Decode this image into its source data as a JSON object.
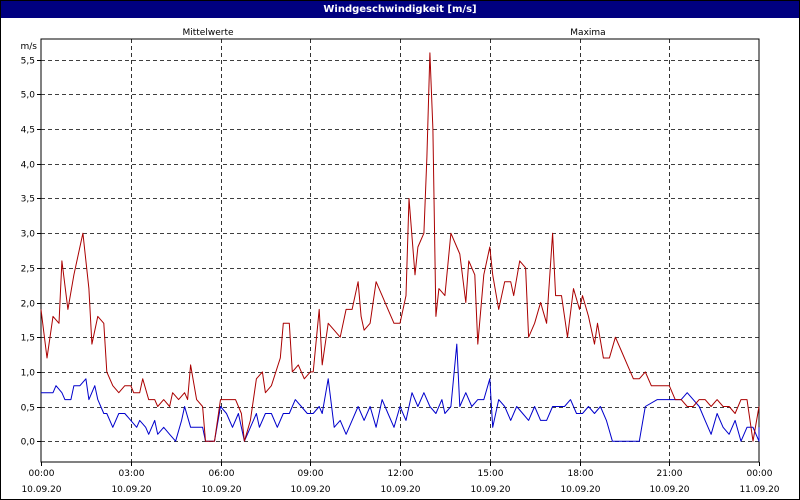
{
  "window": {
    "title": "Windgeschwindigkeit [m/s]"
  },
  "chart_data": {
    "type": "line",
    "ylabel": "m/s",
    "ylim": [
      -0.3,
      5.8
    ],
    "yticks": [
      {
        "value": 0.0,
        "label": "0,0"
      },
      {
        "value": 0.5,
        "label": "0,5"
      },
      {
        "value": 1.0,
        "label": "1,0"
      },
      {
        "value": 1.5,
        "label": "1,5"
      },
      {
        "value": 2.0,
        "label": "2,0"
      },
      {
        "value": 2.5,
        "label": "2,5"
      },
      {
        "value": 3.0,
        "label": "3,0"
      },
      {
        "value": 3.5,
        "label": "3,5"
      },
      {
        "value": 4.0,
        "label": "4,0"
      },
      {
        "value": 4.5,
        "label": "4,5"
      },
      {
        "value": 5.0,
        "label": "5,0"
      },
      {
        "value": 5.5,
        "label": "5,5"
      }
    ],
    "xlim": [
      0,
      24
    ],
    "xticks": [
      {
        "value": 0,
        "time": "00:00",
        "date": "10.09.20"
      },
      {
        "value": 3,
        "time": "03:00",
        "date": "10.09.20"
      },
      {
        "value": 6,
        "time": "06:00",
        "date": "10.09.20"
      },
      {
        "value": 9,
        "time": "09:00",
        "date": "10.09.20"
      },
      {
        "value": 12,
        "time": "12:00",
        "date": "10.09.20"
      },
      {
        "value": 15,
        "time": "15:00",
        "date": "10.09.20"
      },
      {
        "value": 18,
        "time": "18:00",
        "date": "10.09.20"
      },
      {
        "value": 21,
        "time": "21:00",
        "date": "10.09.20"
      },
      {
        "value": 24,
        "time": "00:00",
        "date": "11.09.20"
      }
    ],
    "grid": true,
    "series": [
      {
        "name": "Mittelwerte",
        "color": "#0000cc",
        "points": [
          [
            0.0,
            0.7
          ],
          [
            0.2,
            0.7
          ],
          [
            0.4,
            0.7
          ],
          [
            0.5,
            0.8
          ],
          [
            0.7,
            0.7
          ],
          [
            0.8,
            0.6
          ],
          [
            1.0,
            0.6
          ],
          [
            1.1,
            0.8
          ],
          [
            1.3,
            0.8
          ],
          [
            1.5,
            0.9
          ],
          [
            1.6,
            0.6
          ],
          [
            1.8,
            0.8
          ],
          [
            1.9,
            0.6
          ],
          [
            2.1,
            0.4
          ],
          [
            2.2,
            0.4
          ],
          [
            2.4,
            0.2
          ],
          [
            2.6,
            0.4
          ],
          [
            2.8,
            0.4
          ],
          [
            3.0,
            0.3
          ],
          [
            3.2,
            0.2
          ],
          [
            3.3,
            0.3
          ],
          [
            3.5,
            0.2
          ],
          [
            3.6,
            0.1
          ],
          [
            3.8,
            0.3
          ],
          [
            3.9,
            0.1
          ],
          [
            4.1,
            0.2
          ],
          [
            4.3,
            0.1
          ],
          [
            4.5,
            0.0
          ],
          [
            4.7,
            0.3
          ],
          [
            4.8,
            0.5
          ],
          [
            5.0,
            0.2
          ],
          [
            5.2,
            0.2
          ],
          [
            5.4,
            0.2
          ],
          [
            5.5,
            0.0
          ],
          [
            5.8,
            0.0
          ],
          [
            6.0,
            0.5
          ],
          [
            6.2,
            0.4
          ],
          [
            6.4,
            0.2
          ],
          [
            6.6,
            0.4
          ],
          [
            6.8,
            0.0
          ],
          [
            7.0,
            0.2
          ],
          [
            7.2,
            0.4
          ],
          [
            7.3,
            0.2
          ],
          [
            7.5,
            0.4
          ],
          [
            7.7,
            0.4
          ],
          [
            7.9,
            0.2
          ],
          [
            8.1,
            0.4
          ],
          [
            8.3,
            0.4
          ],
          [
            8.5,
            0.6
          ],
          [
            8.7,
            0.5
          ],
          [
            8.9,
            0.4
          ],
          [
            9.1,
            0.4
          ],
          [
            9.3,
            0.5
          ],
          [
            9.4,
            0.4
          ],
          [
            9.6,
            0.9
          ],
          [
            9.8,
            0.2
          ],
          [
            10.0,
            0.3
          ],
          [
            10.2,
            0.1
          ],
          [
            10.4,
            0.3
          ],
          [
            10.6,
            0.5
          ],
          [
            10.8,
            0.3
          ],
          [
            11.0,
            0.5
          ],
          [
            11.2,
            0.2
          ],
          [
            11.4,
            0.6
          ],
          [
            11.6,
            0.4
          ],
          [
            11.8,
            0.2
          ],
          [
            12.0,
            0.5
          ],
          [
            12.2,
            0.3
          ],
          [
            12.4,
            0.7
          ],
          [
            12.6,
            0.5
          ],
          [
            12.8,
            0.7
          ],
          [
            13.0,
            0.5
          ],
          [
            13.2,
            0.4
          ],
          [
            13.4,
            0.6
          ],
          [
            13.5,
            0.4
          ],
          [
            13.7,
            0.5
          ],
          [
            13.9,
            1.4
          ],
          [
            14.0,
            0.5
          ],
          [
            14.2,
            0.7
          ],
          [
            14.4,
            0.5
          ],
          [
            14.6,
            0.6
          ],
          [
            14.8,
            0.6
          ],
          [
            15.0,
            0.9
          ],
          [
            15.1,
            0.2
          ],
          [
            15.3,
            0.6
          ],
          [
            15.5,
            0.5
          ],
          [
            15.7,
            0.3
          ],
          [
            15.9,
            0.5
          ],
          [
            16.1,
            0.4
          ],
          [
            16.3,
            0.3
          ],
          [
            16.5,
            0.5
          ],
          [
            16.7,
            0.3
          ],
          [
            16.9,
            0.3
          ],
          [
            17.1,
            0.5
          ],
          [
            17.3,
            0.5
          ],
          [
            17.5,
            0.5
          ],
          [
            17.7,
            0.6
          ],
          [
            17.9,
            0.4
          ],
          [
            18.1,
            0.4
          ],
          [
            18.3,
            0.5
          ],
          [
            18.5,
            0.4
          ],
          [
            18.7,
            0.5
          ],
          [
            18.9,
            0.3
          ],
          [
            19.1,
            0.0
          ],
          [
            19.5,
            0.0
          ],
          [
            19.8,
            0.0
          ],
          [
            20.0,
            0.0
          ],
          [
            20.2,
            0.5
          ],
          [
            20.6,
            0.6
          ],
          [
            21.0,
            0.6
          ],
          [
            21.2,
            0.6
          ],
          [
            21.4,
            0.6
          ],
          [
            21.6,
            0.7
          ],
          [
            21.8,
            0.6
          ],
          [
            22.0,
            0.5
          ],
          [
            22.2,
            0.3
          ],
          [
            22.4,
            0.1
          ],
          [
            22.6,
            0.4
          ],
          [
            22.8,
            0.2
          ],
          [
            23.0,
            0.1
          ],
          [
            23.2,
            0.3
          ],
          [
            23.4,
            0.0
          ],
          [
            23.6,
            0.2
          ],
          [
            23.8,
            0.2
          ],
          [
            24.0,
            0.0
          ],
          [
            24.0,
            0.2
          ]
        ]
      },
      {
        "name": "Maxima",
        "color": "#aa0000",
        "points": [
          [
            0.0,
            1.9
          ],
          [
            0.2,
            1.2
          ],
          [
            0.4,
            1.8
          ],
          [
            0.6,
            1.7
          ],
          [
            0.7,
            2.6
          ],
          [
            0.9,
            1.9
          ],
          [
            1.1,
            2.4
          ],
          [
            1.3,
            2.8
          ],
          [
            1.4,
            3.0
          ],
          [
            1.6,
            2.2
          ],
          [
            1.7,
            1.4
          ],
          [
            1.9,
            1.8
          ],
          [
            2.1,
            1.7
          ],
          [
            2.2,
            1.0
          ],
          [
            2.4,
            0.8
          ],
          [
            2.6,
            0.7
          ],
          [
            2.8,
            0.8
          ],
          [
            3.0,
            0.8
          ],
          [
            3.1,
            0.7
          ],
          [
            3.3,
            0.7
          ],
          [
            3.4,
            0.9
          ],
          [
            3.6,
            0.6
          ],
          [
            3.8,
            0.6
          ],
          [
            3.9,
            0.5
          ],
          [
            4.1,
            0.6
          ],
          [
            4.3,
            0.5
          ],
          [
            4.4,
            0.7
          ],
          [
            4.6,
            0.6
          ],
          [
            4.8,
            0.7
          ],
          [
            4.9,
            0.6
          ],
          [
            5.0,
            1.1
          ],
          [
            5.2,
            0.6
          ],
          [
            5.4,
            0.5
          ],
          [
            5.5,
            0.0
          ],
          [
            5.8,
            0.0
          ],
          [
            6.0,
            0.6
          ],
          [
            6.3,
            0.6
          ],
          [
            6.5,
            0.6
          ],
          [
            6.7,
            0.4
          ],
          [
            6.8,
            0.0
          ],
          [
            7.0,
            0.3
          ],
          [
            7.2,
            0.9
          ],
          [
            7.4,
            1.0
          ],
          [
            7.5,
            0.7
          ],
          [
            7.7,
            0.8
          ],
          [
            8.0,
            1.2
          ],
          [
            8.1,
            1.7
          ],
          [
            8.3,
            1.7
          ],
          [
            8.4,
            1.0
          ],
          [
            8.6,
            1.1
          ],
          [
            8.8,
            0.9
          ],
          [
            9.0,
            1.0
          ],
          [
            9.1,
            1.0
          ],
          [
            9.3,
            1.9
          ],
          [
            9.4,
            1.1
          ],
          [
            9.6,
            1.7
          ],
          [
            9.8,
            1.6
          ],
          [
            10.0,
            1.5
          ],
          [
            10.2,
            1.9
          ],
          [
            10.4,
            1.9
          ],
          [
            10.6,
            2.3
          ],
          [
            10.7,
            1.8
          ],
          [
            10.8,
            1.6
          ],
          [
            11.0,
            1.7
          ],
          [
            11.2,
            2.3
          ],
          [
            11.4,
            2.1
          ],
          [
            11.6,
            1.9
          ],
          [
            11.8,
            1.7
          ],
          [
            12.0,
            1.7
          ],
          [
            12.2,
            2.1
          ],
          [
            12.3,
            3.5
          ],
          [
            12.5,
            2.4
          ],
          [
            12.6,
            2.8
          ],
          [
            12.8,
            3.0
          ],
          [
            12.9,
            4.1
          ],
          [
            13.0,
            5.6
          ],
          [
            13.1,
            4.5
          ],
          [
            13.2,
            1.8
          ],
          [
            13.3,
            2.2
          ],
          [
            13.5,
            2.1
          ],
          [
            13.7,
            3.0
          ],
          [
            13.9,
            2.8
          ],
          [
            14.0,
            2.7
          ],
          [
            14.2,
            2.0
          ],
          [
            14.3,
            2.6
          ],
          [
            14.5,
            2.4
          ],
          [
            14.6,
            1.4
          ],
          [
            14.8,
            2.4
          ],
          [
            15.0,
            2.8
          ],
          [
            15.1,
            2.4
          ],
          [
            15.3,
            1.9
          ],
          [
            15.5,
            2.3
          ],
          [
            15.7,
            2.3
          ],
          [
            15.8,
            2.1
          ],
          [
            16.0,
            2.6
          ],
          [
            16.2,
            2.5
          ],
          [
            16.3,
            1.5
          ],
          [
            16.5,
            1.7
          ],
          [
            16.7,
            2.0
          ],
          [
            16.9,
            1.7
          ],
          [
            17.1,
            3.0
          ],
          [
            17.2,
            2.1
          ],
          [
            17.4,
            2.1
          ],
          [
            17.6,
            1.5
          ],
          [
            17.8,
            2.2
          ],
          [
            18.0,
            1.9
          ],
          [
            18.1,
            2.1
          ],
          [
            18.3,
            1.8
          ],
          [
            18.5,
            1.4
          ],
          [
            18.6,
            1.7
          ],
          [
            18.8,
            1.2
          ],
          [
            19.0,
            1.2
          ],
          [
            19.2,
            1.5
          ],
          [
            19.4,
            1.3
          ],
          [
            19.6,
            1.1
          ],
          [
            19.8,
            0.9
          ],
          [
            20.0,
            0.9
          ],
          [
            20.2,
            1.0
          ],
          [
            20.4,
            0.8
          ],
          [
            20.8,
            0.8
          ],
          [
            21.0,
            0.8
          ],
          [
            21.2,
            0.6
          ],
          [
            21.4,
            0.6
          ],
          [
            21.6,
            0.5
          ],
          [
            21.8,
            0.5
          ],
          [
            22.0,
            0.6
          ],
          [
            22.2,
            0.6
          ],
          [
            22.4,
            0.5
          ],
          [
            22.6,
            0.6
          ],
          [
            22.8,
            0.5
          ],
          [
            23.0,
            0.5
          ],
          [
            23.2,
            0.4
          ],
          [
            23.4,
            0.6
          ],
          [
            23.6,
            0.6
          ],
          [
            23.8,
            0.0
          ],
          [
            24.0,
            0.5
          ]
        ]
      }
    ]
  }
}
